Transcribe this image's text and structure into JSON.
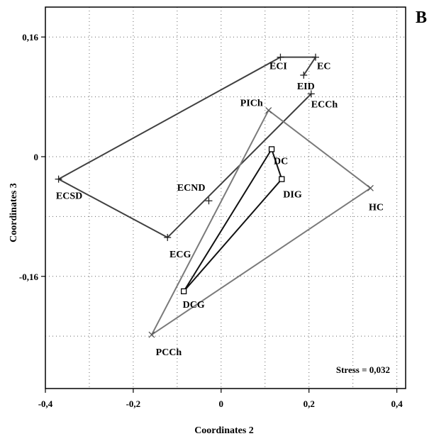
{
  "panel_letter": "B",
  "chart_data": {
    "type": "scatter",
    "xlabel": "Coordinates 2",
    "ylabel": "Coordinates 3",
    "xlim": [
      -0.4,
      0.42
    ],
    "ylim": [
      -0.31,
      0.2
    ],
    "xticks": [
      -0.4,
      -0.2,
      0,
      0.2,
      0.4
    ],
    "xtick_labels": [
      "-0,4",
      "-0,2",
      "0",
      "0,2",
      "0,4"
    ],
    "yticks": [
      0.16,
      0,
      -0.16
    ],
    "ytick_labels": [
      "0,16",
      "0",
      "-0,16"
    ],
    "grid": true,
    "annotation": "Stress = 0,032",
    "points": [
      {
        "label": "ECI",
        "x": 0.135,
        "y": 0.133,
        "marker": "plus"
      },
      {
        "label": "EC",
        "x": 0.215,
        "y": 0.133,
        "marker": "plus"
      },
      {
        "label": "EID",
        "x": 0.188,
        "y": 0.109,
        "marker": "plus"
      },
      {
        "label": "ECCh",
        "x": 0.205,
        "y": 0.084,
        "marker": "plus"
      },
      {
        "label": "ECSD",
        "x": -0.37,
        "y": -0.03,
        "marker": "plus"
      },
      {
        "label": "ECND",
        "x": -0.028,
        "y": -0.059,
        "marker": "plus"
      },
      {
        "label": "ECG",
        "x": -0.122,
        "y": -0.108,
        "marker": "plus"
      },
      {
        "label": "PICh",
        "x": 0.108,
        "y": 0.062,
        "marker": "x"
      },
      {
        "label": "HC",
        "x": 0.34,
        "y": -0.042,
        "marker": "x"
      },
      {
        "label": "PCCh",
        "x": -0.158,
        "y": -0.238,
        "marker": "x"
      },
      {
        "label": "DC",
        "x": 0.115,
        "y": 0.01,
        "marker": "square"
      },
      {
        "label": "DIG",
        "x": 0.138,
        "y": -0.03,
        "marker": "square"
      },
      {
        "label": "DCG",
        "x": -0.085,
        "y": -0.18,
        "marker": "square"
      }
    ],
    "series": [
      {
        "path": [
          "ECI",
          "EC",
          "EID"
        ],
        "color": "#404040",
        "closed": false
      },
      {
        "path": [
          "ECI",
          "ECSD",
          "ECG",
          "ECCh"
        ],
        "color": "#404040",
        "closed": false
      },
      {
        "path": [
          "PICh",
          "HC",
          "PCCh"
        ],
        "color": "#7a7a7a",
        "closed": true
      },
      {
        "path": [
          "DC",
          "DCG",
          "DIG"
        ],
        "color": "#111111",
        "closed": true
      }
    ]
  }
}
